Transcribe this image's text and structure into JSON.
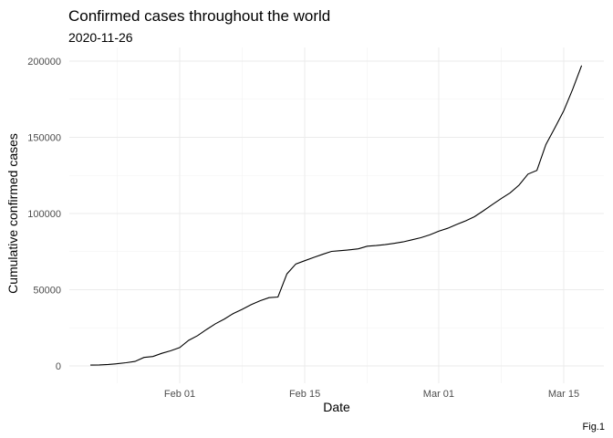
{
  "chart_data": {
    "type": "line",
    "title": "Confirmed cases throughout the world",
    "subtitle": "2020-11-26",
    "xlabel": "Date",
    "ylabel": "Cumulative confirmed cases",
    "caption": "Fig.1",
    "x_tick_labels": [
      "Feb 01",
      "Feb 15",
      "Mar 01",
      "Mar 15"
    ],
    "y_tick_labels": [
      "0",
      "50000",
      "100000",
      "150000",
      "200000"
    ],
    "ylim": [
      0,
      200000
    ],
    "xlim": [
      "2020-01-22",
      "2020-03-17"
    ],
    "grid": true,
    "series": [
      {
        "x": [
          "2020-01-22",
          "2020-01-23",
          "2020-01-24",
          "2020-01-25",
          "2020-01-26",
          "2020-01-27",
          "2020-01-28",
          "2020-01-29",
          "2020-01-30",
          "2020-01-31",
          "2020-02-01",
          "2020-02-02",
          "2020-02-03",
          "2020-02-04",
          "2020-02-05",
          "2020-02-06",
          "2020-02-07",
          "2020-02-08",
          "2020-02-09",
          "2020-02-10",
          "2020-02-11",
          "2020-02-12",
          "2020-02-13",
          "2020-02-14",
          "2020-02-15",
          "2020-02-16",
          "2020-02-17",
          "2020-02-18",
          "2020-02-19",
          "2020-02-20",
          "2020-02-21",
          "2020-02-22",
          "2020-02-23",
          "2020-02-24",
          "2020-02-25",
          "2020-02-26",
          "2020-02-27",
          "2020-02-28",
          "2020-02-29",
          "2020-03-01",
          "2020-03-02",
          "2020-03-03",
          "2020-03-04",
          "2020-03-05",
          "2020-03-06",
          "2020-03-07",
          "2020-03-08",
          "2020-03-09",
          "2020-03-10",
          "2020-03-11",
          "2020-03-12",
          "2020-03-13",
          "2020-03-14",
          "2020-03-15",
          "2020-03-16",
          "2020-03-17"
        ],
        "values": [
          555,
          653,
          941,
          1434,
          2118,
          2927,
          5578,
          6166,
          8234,
          9927,
          12038,
          16787,
          19881,
          23892,
          27635,
          30794,
          34391,
          37120,
          40150,
          42762,
          44802,
          45221,
          60368,
          66885,
          69030,
          71224,
          73258,
          75136,
          75639,
          76197,
          76819,
          78572,
          78958,
          79561,
          80406,
          81388,
          82746,
          84112,
          86011,
          88369,
          90306,
          92840,
          95120,
          97886,
          101800,
          105847,
          109821,
          113590,
          118620,
          125875,
          128352,
          145205,
          156101,
          167454,
          181574,
          197102
        ]
      }
    ]
  }
}
